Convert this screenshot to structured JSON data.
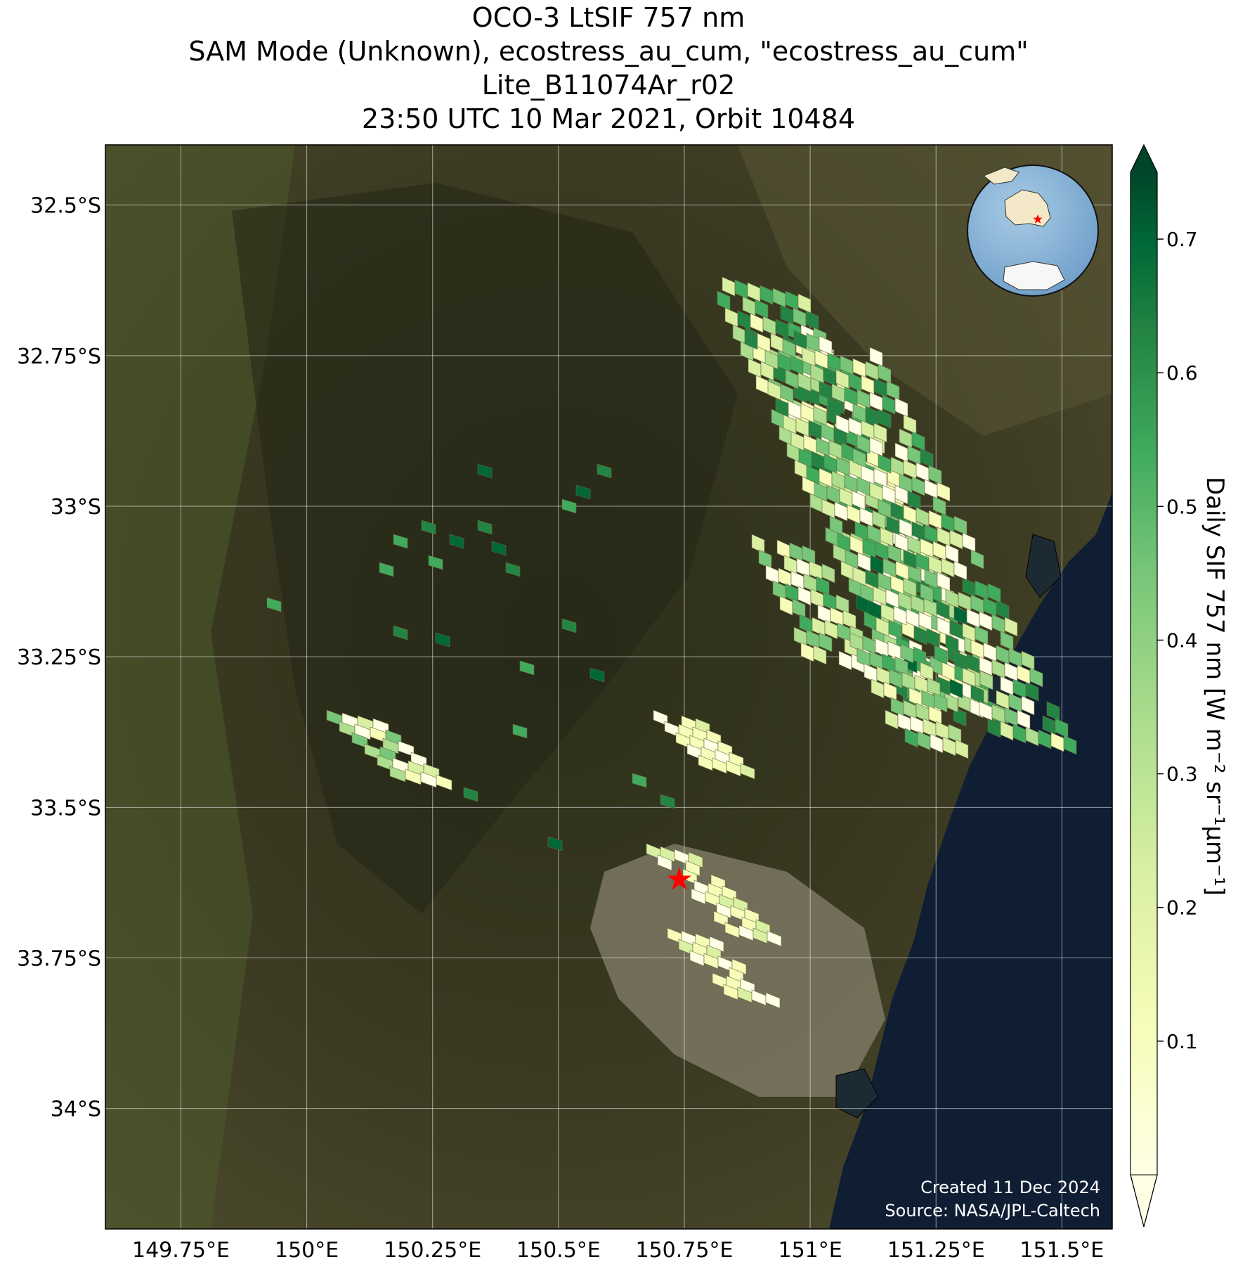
{
  "title": {
    "line1": "OCO-3 LtSIF 757 nm",
    "line2": "SAM Mode (Unknown), ecostress_au_cum, \"ecostress_au_cum\"",
    "line3": "Lite_B11074Ar_r02",
    "line4": "23:50 UTC 10 Mar 2021, Orbit 10484"
  },
  "map": {
    "lon_range": [
      149.6,
      151.6
    ],
    "lat_range": [
      -34.2,
      -32.4
    ],
    "lon_ticks": [
      {
        "value": 149.75,
        "label": "149.75°E"
      },
      {
        "value": 150.0,
        "label": "150°E"
      },
      {
        "value": 150.25,
        "label": "150.25°E"
      },
      {
        "value": 150.5,
        "label": "150.5°E"
      },
      {
        "value": 150.75,
        "label": "150.75°E"
      },
      {
        "value": 151.0,
        "label": "151°E"
      },
      {
        "value": 151.25,
        "label": "151.25°E"
      },
      {
        "value": 151.5,
        "label": "151.5°E"
      }
    ],
    "lat_ticks": [
      {
        "value": -32.5,
        "label": "32.5°S"
      },
      {
        "value": -32.75,
        "label": "32.75°S"
      },
      {
        "value": -33.0,
        "label": "33°S"
      },
      {
        "value": -33.25,
        "label": "33.25°S"
      },
      {
        "value": -33.5,
        "label": "33.5°S"
      },
      {
        "value": -33.75,
        "label": "33.75°S"
      },
      {
        "value": -34.0,
        "label": "34°S"
      }
    ],
    "target_site": {
      "lon": 150.74,
      "lat": -33.62,
      "marker": "red-star"
    },
    "grid": true,
    "basemap": "satellite imagery"
  },
  "inset_globe": {
    "marker": "red-star",
    "location": "top-right"
  },
  "colorbar": {
    "label": "Daily SIF 757 nm [W m⁻² sr⁻¹μm⁻¹]",
    "range": [
      0.0,
      0.75
    ],
    "ticks": [
      {
        "value": 0.1,
        "label": "0.1"
      },
      {
        "value": 0.2,
        "label": "0.2"
      },
      {
        "value": 0.3,
        "label": "0.3"
      },
      {
        "value": 0.4,
        "label": "0.4"
      },
      {
        "value": 0.5,
        "label": "0.5"
      },
      {
        "value": 0.6,
        "label": "0.6"
      },
      {
        "value": 0.7,
        "label": "0.7"
      }
    ],
    "colormap": "YlGn",
    "extend": "both"
  },
  "credit": {
    "created": "Created 11 Dec 2024",
    "source": "Source: NASA/JPL-Caltech"
  },
  "colors": {
    "land_dark": "#2f321c",
    "land_mid": "#4a4a2c",
    "land_green": "#3f5a28",
    "urban": "#8e8a78",
    "ocean": "#0f1e33",
    "star": "#ff0000"
  }
}
